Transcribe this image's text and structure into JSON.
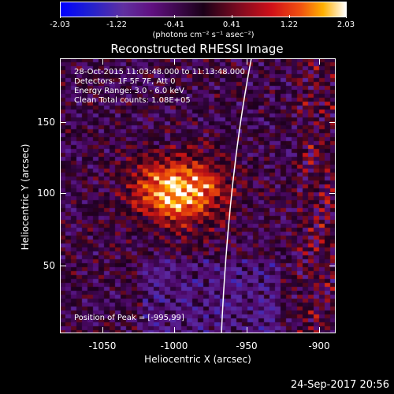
{
  "colorbar": {
    "tick_labels": [
      "-2.03",
      "-1.22",
      "-0.41",
      "0.41",
      "1.22",
      "2.03"
    ],
    "units_text": "(photons cm⁻² s⁻¹ asec⁻²)"
  },
  "title": "Reconstructed RHESSI Image",
  "info": {
    "line1": "28-Oct-2015 11:03:48.000 to 11:13:48.000",
    "line2": "Detectors: 1F 5F 7F, Att 0",
    "line3": "Energy Range: 3.0 - 6.0 keV",
    "line4": "Clean    Total counts: 1.08E+05"
  },
  "peak_text": "Position of Peak = [-995,99]",
  "axes": {
    "xlabel": "Heliocentric X (arcsec)",
    "ylabel": "Heliocentric Y (arcsec)",
    "xticks": [
      "-1050",
      "-1000",
      "-950",
      "-900"
    ],
    "yticks": [
      "50",
      "100",
      "150"
    ]
  },
  "timestamp": "24-Sep-2017 20:56",
  "colors": {
    "background": "#000000",
    "text": "#ffffff"
  }
}
